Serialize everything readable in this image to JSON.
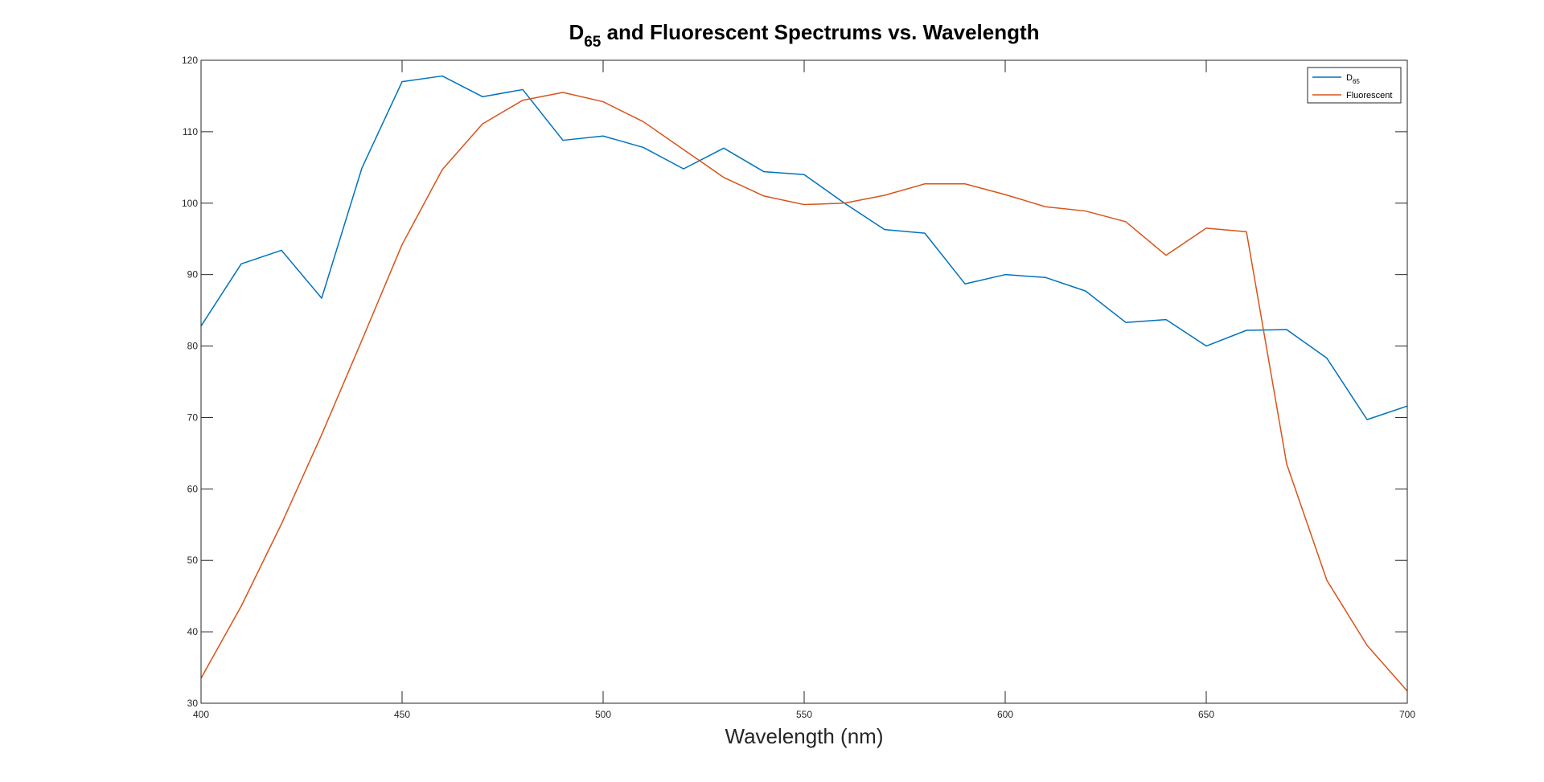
{
  "chart_data": {
    "type": "line",
    "title_parts": {
      "pre": "D",
      "sub": "65",
      "post": " and Fluorescent Spectrums vs. Wavelength"
    },
    "xlabel": "Wavelength (nm)",
    "ylabel": "",
    "xlim": [
      400,
      700
    ],
    "ylim": [
      30,
      120
    ],
    "x_ticks": [
      400,
      450,
      500,
      550,
      600,
      650,
      700
    ],
    "y_ticks": [
      30,
      40,
      50,
      60,
      70,
      80,
      90,
      100,
      110,
      120
    ],
    "grid": false,
    "legend_position": "top-right",
    "x": [
      400,
      410,
      420,
      430,
      440,
      450,
      460,
      470,
      480,
      490,
      500,
      510,
      520,
      530,
      540,
      550,
      560,
      570,
      580,
      590,
      600,
      610,
      620,
      630,
      640,
      650,
      660,
      670,
      680,
      690,
      700
    ],
    "series": [
      {
        "name_parts": {
          "pre": "D",
          "sub": "65"
        },
        "color": "#0072BD",
        "values": [
          82.8,
          91.5,
          93.4,
          86.7,
          104.9,
          117.0,
          117.8,
          114.9,
          115.9,
          108.8,
          109.4,
          107.8,
          104.8,
          107.7,
          104.4,
          104.0,
          100.0,
          96.3,
          95.8,
          88.7,
          90.0,
          89.6,
          87.7,
          83.3,
          83.7,
          80.0,
          82.2,
          82.3,
          78.3,
          69.7,
          71.6
        ]
      },
      {
        "name_parts": {
          "pre": "Fluorescent",
          "sub": ""
        },
        "color": "#D95319",
        "values": [
          33.5,
          43.6,
          55.1,
          67.6,
          80.8,
          94.2,
          104.7,
          111.1,
          114.4,
          115.5,
          114.2,
          111.4,
          107.5,
          103.6,
          101.0,
          99.8,
          100.0,
          101.1,
          102.7,
          102.7,
          101.2,
          99.5,
          98.9,
          97.4,
          92.7,
          96.5,
          96.0,
          63.5,
          47.2,
          38.1,
          31.7
        ]
      }
    ]
  }
}
